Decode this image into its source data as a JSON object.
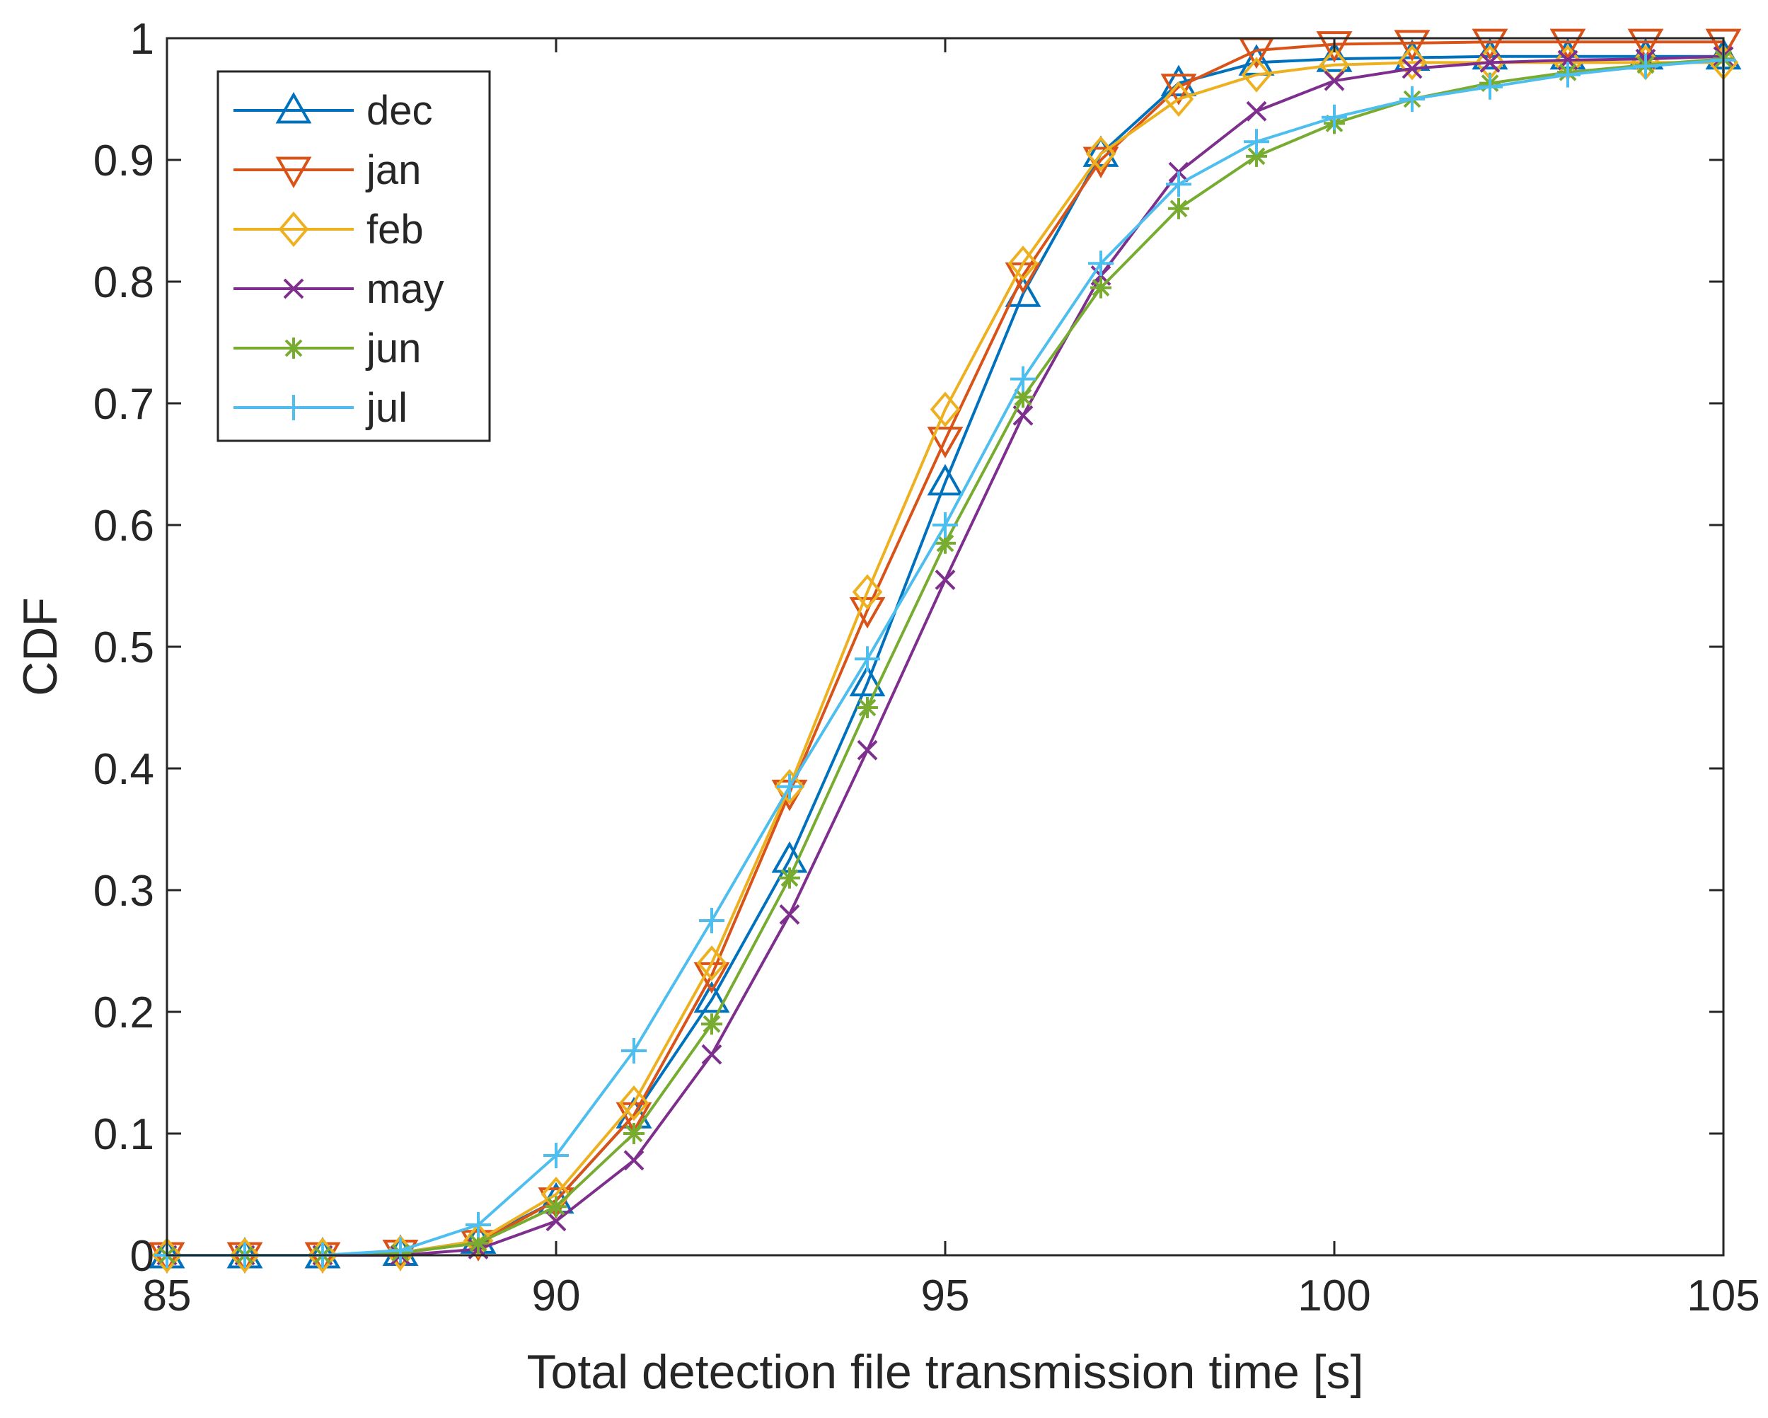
{
  "chart_data": {
    "type": "line",
    "title": "",
    "xlabel": "Total detection file transmission time [s]",
    "ylabel": "CDF",
    "xlim": [
      85,
      105
    ],
    "ylim": [
      0,
      1
    ],
    "grid": false,
    "legend_position": "top-left",
    "x": [
      85,
      86,
      87,
      88,
      89,
      90,
      91,
      92,
      93,
      94,
      95,
      96,
      97,
      98,
      99,
      100,
      101,
      102,
      103,
      104,
      105
    ],
    "xticks": [
      85,
      90,
      95,
      100,
      105
    ],
    "xtick_labels": [
      "85",
      "90",
      "95",
      "100",
      "105"
    ],
    "yticks": [
      0,
      0.1,
      0.2,
      0.3,
      0.4,
      0.5,
      0.6,
      0.7,
      0.8,
      0.9,
      1
    ],
    "ytick_labels": [
      "0",
      "0.1",
      "0.2",
      "0.3",
      "0.4",
      "0.5",
      "0.6",
      "0.7",
      "0.8",
      "0.9",
      "1"
    ],
    "series": [
      {
        "name": "dec",
        "color": "#0072BD",
        "marker": "triangle-up",
        "values": [
          0,
          0,
          0,
          0.002,
          0.012,
          0.045,
          0.115,
          0.21,
          0.325,
          0.47,
          0.635,
          0.79,
          0.905,
          0.963,
          0.98,
          0.983,
          0.984,
          0.985,
          0.985,
          0.985,
          0.985
        ]
      },
      {
        "name": "jan",
        "color": "#D95319",
        "marker": "triangle-down",
        "values": [
          0,
          0,
          0,
          0.002,
          0.01,
          0.045,
          0.115,
          0.23,
          0.38,
          0.53,
          0.67,
          0.805,
          0.9,
          0.96,
          0.99,
          0.995,
          0.996,
          0.997,
          0.997,
          0.997,
          0.997
        ]
      },
      {
        "name": "feb",
        "color": "#EDB120",
        "marker": "diamond",
        "values": [
          0,
          0,
          0,
          0.002,
          0.012,
          0.05,
          0.125,
          0.24,
          0.385,
          0.545,
          0.695,
          0.815,
          0.905,
          0.95,
          0.97,
          0.978,
          0.98,
          0.98,
          0.98,
          0.98,
          0.98
        ]
      },
      {
        "name": "may",
        "color": "#7E2F8E",
        "marker": "x",
        "values": [
          0,
          0,
          0,
          0,
          0.005,
          0.028,
          0.078,
          0.165,
          0.28,
          0.415,
          0.555,
          0.69,
          0.805,
          0.89,
          0.94,
          0.965,
          0.975,
          0.98,
          0.982,
          0.983,
          0.985
        ]
      },
      {
        "name": "jun",
        "color": "#77AC30",
        "marker": "asterisk",
        "values": [
          0,
          0,
          0,
          0.002,
          0.01,
          0.04,
          0.1,
          0.19,
          0.31,
          0.45,
          0.585,
          0.705,
          0.795,
          0.86,
          0.903,
          0.93,
          0.95,
          0.963,
          0.972,
          0.978,
          0.983
        ]
      },
      {
        "name": "jul",
        "color": "#4DBEEE",
        "marker": "plus",
        "values": [
          0,
          0,
          0,
          0.004,
          0.025,
          0.082,
          0.168,
          0.275,
          0.385,
          0.49,
          0.6,
          0.72,
          0.815,
          0.88,
          0.915,
          0.935,
          0.95,
          0.96,
          0.97,
          0.977,
          0.982
        ]
      }
    ]
  }
}
